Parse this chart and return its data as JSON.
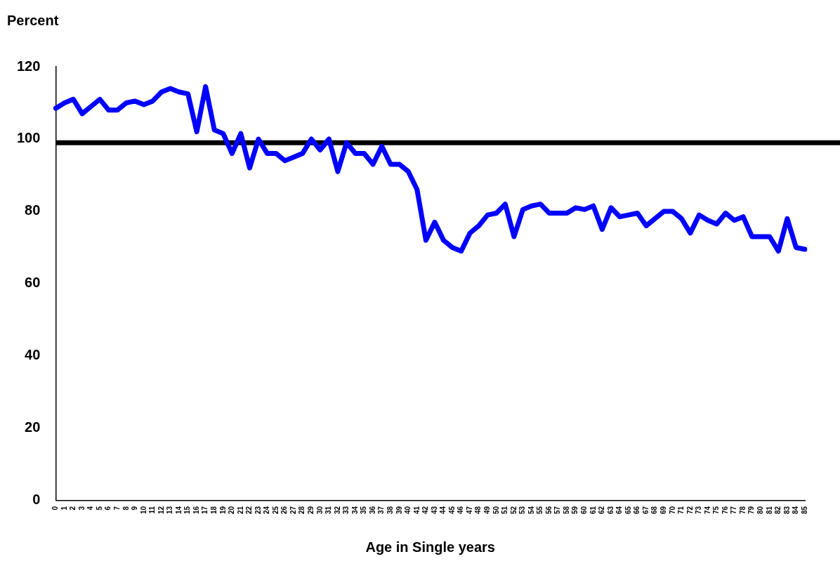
{
  "chart_data": {
    "type": "line",
    "ylabel": "Percent",
    "xlabel": "Age in Single years",
    "categories": [
      "0",
      "1",
      "2",
      "3",
      "4",
      "5",
      "6",
      "7",
      "8",
      "9",
      "10",
      "11",
      "12",
      "13",
      "14",
      "15",
      "16",
      "17",
      "18",
      "19",
      "20",
      "21",
      "22",
      "23",
      "24",
      "25",
      "26",
      "27",
      "28",
      "29",
      "30",
      "31",
      "32",
      "33",
      "34",
      "35",
      "36",
      "37",
      "38",
      "39",
      "40",
      "41",
      "42",
      "43",
      "44",
      "45",
      "46",
      "47",
      "48",
      "49",
      "50",
      "51",
      "52",
      "53",
      "54",
      "55",
      "56",
      "57",
      "58",
      "59",
      "60",
      "61",
      "62",
      "63",
      "64",
      "65",
      "66",
      "67",
      "68",
      "69",
      "70",
      "71",
      "72",
      "73",
      "74",
      "75",
      "76",
      "77",
      "78",
      "79",
      "80",
      "81",
      "82",
      "83",
      "84",
      "85"
    ],
    "series": [
      {
        "color": "#0000ff",
        "values": [
          108.5,
          110,
          111,
          107,
          109,
          111,
          108,
          108,
          110,
          110.5,
          109.5,
          110.5,
          113,
          114,
          113,
          112.5,
          102,
          114.5,
          102.5,
          101.5,
          96,
          101.5,
          92,
          100,
          96,
          96,
          94,
          95,
          96,
          100,
          97,
          100,
          91,
          99,
          96,
          96,
          93,
          98,
          93,
          93,
          91,
          86,
          72,
          77,
          72,
          70,
          69,
          74,
          76,
          79,
          79.5,
          82,
          73,
          80.5,
          81.5,
          82,
          79.5,
          79.5,
          79.5,
          81,
          80.5,
          81.5,
          75,
          81,
          78.5,
          79,
          79.5,
          76,
          78,
          80,
          80,
          78,
          74,
          79,
          77.5,
          76.5,
          79.5,
          77.5,
          78.5,
          73,
          73,
          73,
          69,
          78,
          70,
          69.5
        ]
      }
    ],
    "ylim": [
      0,
      120
    ],
    "yticks": [
      0,
      20,
      40,
      60,
      80,
      100,
      120
    ],
    "ref_lines": [
      {
        "axis": "y",
        "value": 99,
        "color": "#000000"
      }
    ],
    "grid": false,
    "legend": false,
    "marker": "none",
    "line_style": "solid"
  }
}
